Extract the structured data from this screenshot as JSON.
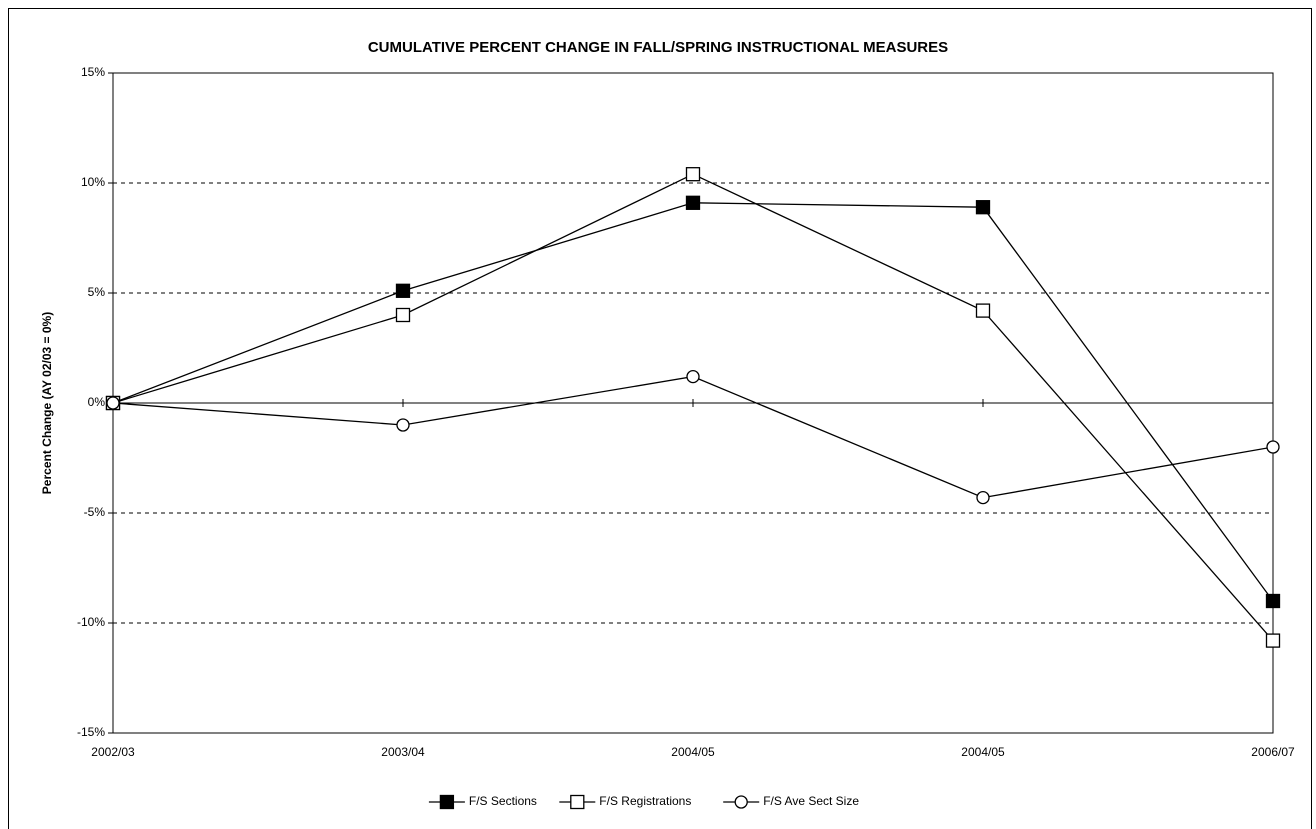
{
  "chart_data": {
    "type": "line",
    "title": "CUMULATIVE PERCENT CHANGE IN FALL/SPRING INSTRUCTIONAL MEASURES",
    "y_label": "Percent Change (AY 02/03 = 0%)",
    "categories": [
      "2002/03",
      "2003/04",
      "2004/05",
      "2004/05",
      "2006/07"
    ],
    "series": [
      {
        "name": "F/S Sections",
        "color": "#000000",
        "marker": "filled-square",
        "values": [
          0,
          5.1,
          9.1,
          8.9,
          -9.0
        ]
      },
      {
        "name": "F/S Registrations",
        "color": "#000000",
        "marker": "open-square",
        "values": [
          0,
          4.0,
          10.4,
          4.2,
          -10.8
        ]
      },
      {
        "name": "F/S Ave Sect Size",
        "color": "#000000",
        "marker": "open-circle",
        "values": [
          0,
          -1.0,
          1.2,
          -4.3,
          -2.0
        ]
      }
    ],
    "ylim": [
      -15,
      15
    ],
    "yticks": [
      {
        "value": -15,
        "label": "-15%"
      },
      {
        "value": -10,
        "label": "-10%"
      },
      {
        "value": -5,
        "label": "-5%"
      },
      {
        "value": 0,
        "label": "0%"
      },
      {
        "value": 5,
        "label": "5%"
      },
      {
        "value": 10,
        "label": "10%"
      },
      {
        "value": 15,
        "label": "15%"
      }
    ],
    "grid": true,
    "legend": "bottom"
  }
}
